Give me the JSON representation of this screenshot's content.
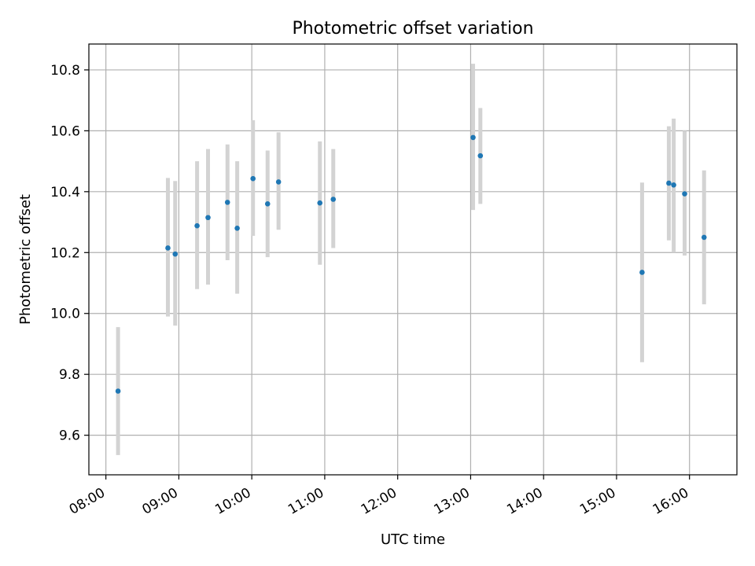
{
  "chart_data": {
    "type": "scatter",
    "title": "Photometric offset variation",
    "xlabel": "UTC time",
    "ylabel": "Photometric offset",
    "xlim": [
      "07:46",
      "16:39"
    ],
    "ylim": [
      9.47,
      10.885
    ],
    "xticks": [
      "08:00",
      "09:00",
      "10:00",
      "11:00",
      "12:00",
      "13:00",
      "14:00",
      "15:00",
      "16:00"
    ],
    "yticks": [
      "9.6",
      "9.8",
      "10.0",
      "10.2",
      "10.4",
      "10.6",
      "10.8"
    ],
    "grid": true,
    "point_color": "#1f77b4",
    "errorbar_color": "#d3d3d3",
    "points": [
      {
        "time": "08:10",
        "y": 9.745,
        "lo": 9.535,
        "hi": 9.955
      },
      {
        "time": "08:51",
        "y": 10.215,
        "lo": 9.99,
        "hi": 10.445
      },
      {
        "time": "08:57",
        "y": 10.195,
        "lo": 9.96,
        "hi": 10.435
      },
      {
        "time": "09:15",
        "y": 10.288,
        "lo": 10.08,
        "hi": 10.5
      },
      {
        "time": "09:24",
        "y": 10.315,
        "lo": 10.095,
        "hi": 10.54
      },
      {
        "time": "09:40",
        "y": 10.365,
        "lo": 10.175,
        "hi": 10.555
      },
      {
        "time": "09:48",
        "y": 10.28,
        "lo": 10.065,
        "hi": 10.5
      },
      {
        "time": "10:01",
        "y": 10.443,
        "lo": 10.255,
        "hi": 10.635
      },
      {
        "time": "10:13",
        "y": 10.36,
        "lo": 10.185,
        "hi": 10.535
      },
      {
        "time": "10:22",
        "y": 10.432,
        "lo": 10.275,
        "hi": 10.595
      },
      {
        "time": "10:56",
        "y": 10.363,
        "lo": 10.16,
        "hi": 10.565
      },
      {
        "time": "11:07",
        "y": 10.375,
        "lo": 10.215,
        "hi": 10.54
      },
      {
        "time": "13:02",
        "y": 10.578,
        "lo": 10.34,
        "hi": 10.82
      },
      {
        "time": "13:08",
        "y": 10.518,
        "lo": 10.36,
        "hi": 10.675
      },
      {
        "time": "15:21",
        "y": 10.135,
        "lo": 9.84,
        "hi": 10.43
      },
      {
        "time": "15:43",
        "y": 10.428,
        "lo": 10.24,
        "hi": 10.615
      },
      {
        "time": "15:47",
        "y": 10.422,
        "lo": 10.2,
        "hi": 10.64
      },
      {
        "time": "15:56",
        "y": 10.393,
        "lo": 10.19,
        "hi": 10.6
      },
      {
        "time": "16:12",
        "y": 10.25,
        "lo": 10.03,
        "hi": 10.47
      }
    ]
  }
}
